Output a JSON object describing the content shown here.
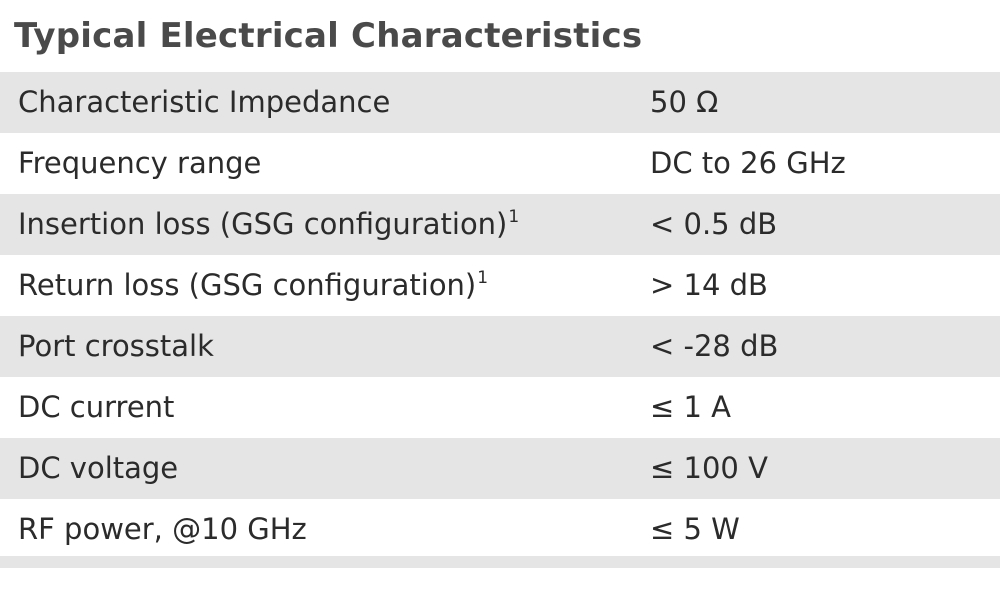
{
  "title": "Typical Electrical Characteristics",
  "rows": [
    {
      "label": "Characteristic Impedance",
      "sup": "",
      "value": "50 Ω"
    },
    {
      "label": "Frequency range",
      "sup": "",
      "value": "DC to 26 GHz"
    },
    {
      "label": "Insertion loss (GSG configuration)",
      "sup": "1",
      "value": "< 0.5 dB"
    },
    {
      "label": "Return loss (GSG configuration)",
      "sup": "1",
      "value": "> 14 dB"
    },
    {
      "label": "Port crosstalk",
      "sup": "",
      "value": "< -28 dB"
    },
    {
      "label": "DC current",
      "sup": "",
      "value": "≤ 1 A"
    },
    {
      "label": "DC voltage",
      "sup": "",
      "value": "≤ 100 V"
    },
    {
      "label": "RF power, @10 GHz",
      "sup": "",
      "value": "≤ 5 W"
    }
  ],
  "colors": {
    "title_text": "#4a4a4a",
    "body_text": "#2b2b2b",
    "shaded_row": "#e5e5e5",
    "plain_row": "#ffffff"
  }
}
